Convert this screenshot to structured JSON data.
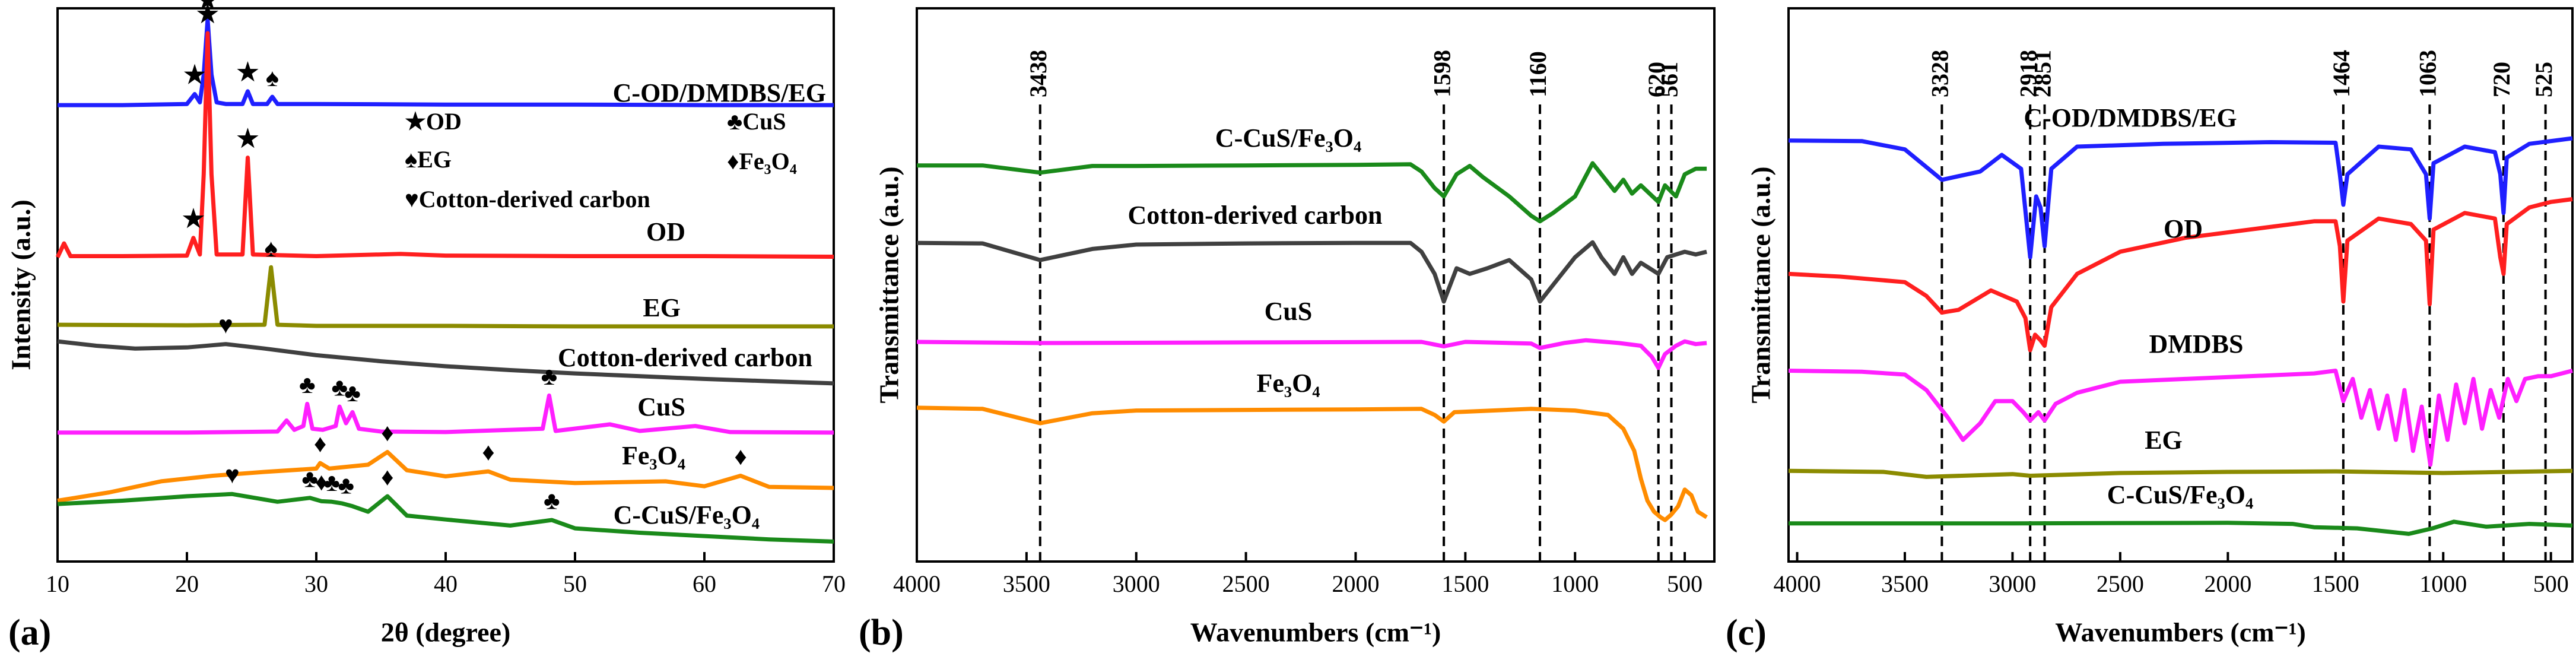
{
  "chart_data": [
    {
      "type": "line",
      "panel_label": "(a)",
      "x_label": "2θ (degree)",
      "y_label": "Intensity (a.u.)",
      "xlim": [
        10,
        70
      ],
      "xticks": [
        10,
        20,
        30,
        40,
        50,
        60,
        70
      ],
      "ylim": [
        0,
        100
      ],
      "legend_text": [
        "★OD",
        "♣CuS",
        "♠EG",
        "♦Fe₃O₄",
        "♥Cotton-derived carbon"
      ],
      "series": [
        {
          "name": "C-OD/DMDBS/EG",
          "color": "#1f1fff",
          "x": [
            10,
            15,
            20,
            20.6,
            21,
            21.3,
            21.6,
            21.9,
            22.3,
            23,
            24.3,
            24.7,
            25.1,
            26.2,
            26.6,
            27,
            30,
            40,
            50,
            60,
            70
          ],
          "values": [
            82.5,
            82.5,
            82.7,
            84.5,
            83,
            88,
            98,
            88,
            83,
            82.7,
            82.7,
            85,
            82.7,
            82.7,
            84,
            82.7,
            82.7,
            82.6,
            82.6,
            82.5,
            82.5
          ],
          "peaks": [
            {
              "label": "★",
              "x": 20.6
            },
            {
              "label": "★",
              "x": 21.6
            },
            {
              "label": "★",
              "x": 24.7
            },
            {
              "label": "♠",
              "x": 26.6
            }
          ]
        },
        {
          "name": "OD",
          "color": "#ff1f1f",
          "x": [
            10,
            10.5,
            11,
            15,
            20,
            20.5,
            21,
            21.3,
            21.6,
            21.9,
            22.3,
            24.3,
            24.7,
            25.1,
            30,
            36.5,
            40,
            50,
            60,
            70
          ],
          "values": [
            55,
            57.5,
            55.2,
            55.2,
            55.3,
            58.5,
            55.5,
            70,
            95.5,
            70,
            55.5,
            55.5,
            73,
            55.5,
            55.2,
            55.6,
            55.3,
            55.2,
            55.2,
            55.1
          ],
          "peaks": [
            {
              "label": "★",
              "x": 20.5
            },
            {
              "label": "★",
              "x": 21.6
            },
            {
              "label": "★",
              "x": 24.7
            }
          ]
        },
        {
          "name": "EG",
          "color": "#8b8b00",
          "x": [
            10,
            20,
            26,
            26.5,
            27,
            30,
            40,
            50,
            60,
            70
          ],
          "values": [
            42.8,
            42.7,
            42.8,
            53.2,
            42.8,
            42.6,
            42.6,
            42.5,
            42.5,
            42.5
          ],
          "peaks": [
            {
              "label": "♠",
              "x": 26.5
            }
          ]
        },
        {
          "name": "Cotton-derived carbon",
          "color": "#404040",
          "x": [
            10,
            13,
            16,
            20,
            23,
            26,
            30,
            35,
            40,
            45,
            50,
            55,
            60,
            65,
            70
          ],
          "values": [
            39.8,
            39,
            38.5,
            38.7,
            39.3,
            38.5,
            37.3,
            36.2,
            35.3,
            34.6,
            34,
            33.5,
            33,
            32.6,
            32.2
          ],
          "peaks": [
            {
              "label": "♥",
              "x": 23
            }
          ]
        },
        {
          "name": "CuS",
          "color": "#ff1fff",
          "x": [
            10,
            20,
            27,
            27.7,
            28.3,
            29,
            29.3,
            29.7,
            30.5,
            31.5,
            31.8,
            32.3,
            32.8,
            33.3,
            35,
            40,
            47.5,
            48,
            48.5,
            52.7,
            55,
            59.3,
            62,
            70
          ],
          "values": [
            23.3,
            23.3,
            23.5,
            25.5,
            23.8,
            24.5,
            28.5,
            24,
            23.8,
            24.5,
            28,
            25,
            27,
            24,
            23.5,
            23.4,
            24,
            30,
            23.6,
            24.8,
            23.6,
            24.5,
            23.4,
            23.3
          ],
          "peaks": [
            {
              "label": "♣",
              "x": 29.3
            },
            {
              "label": "♣",
              "x": 31.8
            },
            {
              "label": "♣",
              "x": 32.8
            },
            {
              "label": "♣",
              "x": 48
            }
          ]
        },
        {
          "name": "Fe₃O₄",
          "color": "#ff8c00",
          "x": [
            10,
            14,
            18,
            22,
            26,
            30,
            30.3,
            31,
            34,
            35.5,
            37,
            40,
            43.3,
            45,
            50,
            57,
            60,
            62.8,
            65,
            70
          ],
          "values": [
            11,
            12.5,
            14.5,
            15.5,
            16.2,
            16.8,
            17.8,
            16.8,
            17.5,
            19.8,
            16.5,
            15.4,
            16.3,
            14.8,
            14.2,
            14.5,
            13.6,
            15.5,
            13.5,
            13.3
          ],
          "peaks": [
            {
              "label": "♦",
              "x": 30.3
            },
            {
              "label": "♦",
              "x": 35.5
            },
            {
              "label": "♦",
              "x": 43.3
            },
            {
              "label": "♦",
              "x": 62.8
            }
          ]
        },
        {
          "name": "C-CuS/Fe₃O₄",
          "color": "#1a8a1a",
          "x": [
            10,
            15,
            20,
            23.5,
            27,
            29.5,
            30.4,
            31.2,
            32,
            32.8,
            34,
            35.5,
            37,
            40,
            45,
            48.2,
            50,
            55,
            60,
            65,
            70
          ],
          "values": [
            10.4,
            11,
            11.8,
            12.2,
            10.8,
            11.5,
            10.9,
            10.8,
            10.5,
            10,
            9,
            11.8,
            8.3,
            7.6,
            6.5,
            7.5,
            6,
            5.2,
            4.6,
            4,
            3.6
          ],
          "peaks": [
            {
              "label": "♥",
              "x": 23.5
            },
            {
              "label": "♣",
              "x": 29.5
            },
            {
              "label": "♦",
              "x": 30.4
            },
            {
              "label": "♣",
              "x": 31.2
            },
            {
              "label": "♣",
              "x": 32.3
            },
            {
              "label": "♦",
              "x": 35.5
            },
            {
              "label": "♣",
              "x": 48.2
            }
          ]
        }
      ]
    },
    {
      "type": "line",
      "panel_label": "(b)",
      "x_label": "Wavenumbers (cm⁻¹)",
      "y_label": "Transmittance (a.u.)",
      "xlim": [
        4000,
        365
      ],
      "xticks": [
        4000,
        3500,
        3000,
        2500,
        2000,
        1500,
        1000,
        500
      ],
      "ylim": [
        0,
        100
      ],
      "reference_lines": [
        3438,
        1598,
        1160,
        620,
        561
      ],
      "series": [
        {
          "name": "C-CuS/Fe₃O₄",
          "color": "#1a8a1a",
          "x": [
            4000,
            3700,
            3438,
            3200,
            3000,
            2500,
            2000,
            1750,
            1700,
            1640,
            1598,
            1540,
            1480,
            1420,
            1300,
            1200,
            1160,
            1100,
            1000,
            920,
            880,
            820,
            780,
            740,
            700,
            660,
            620,
            590,
            540,
            500,
            450,
            400
          ],
          "values": [
            71.6,
            71.6,
            70.3,
            71.5,
            71.5,
            71.6,
            71.7,
            71.8,
            70.5,
            67.5,
            66,
            70,
            71.5,
            69.5,
            66,
            62.5,
            61.5,
            63,
            66,
            72,
            70,
            67,
            69,
            66.5,
            68,
            66.5,
            65,
            68,
            66,
            70,
            71,
            71
          ]
        },
        {
          "name": "Cotton-derived carbon",
          "color": "#404040",
          "x": [
            4000,
            3700,
            3438,
            3200,
            3000,
            2500,
            2000,
            1750,
            1700,
            1640,
            1598,
            1540,
            1480,
            1400,
            1300,
            1200,
            1160,
            1100,
            1000,
            920,
            880,
            820,
            780,
            740,
            700,
            660,
            620,
            580,
            500,
            450,
            400
          ],
          "values": [
            57.6,
            57.5,
            54.5,
            56.5,
            57.3,
            57.5,
            57.6,
            57.6,
            56,
            52,
            47,
            53,
            52,
            53,
            54.5,
            51,
            47,
            50,
            55,
            57.7,
            55,
            52,
            55,
            52,
            54,
            53,
            52,
            55,
            56,
            55.5,
            56
          ]
        },
        {
          "name": "CuS",
          "color": "#ff1fff",
          "x": [
            4000,
            3438,
            2500,
            1700,
            1598,
            1500,
            1200,
            1160,
            1050,
            950,
            800,
            700,
            650,
            620,
            590,
            540,
            500,
            450,
            400
          ],
          "values": [
            39.7,
            39.5,
            39.6,
            39.7,
            38.9,
            39.7,
            39.4,
            38.6,
            39.5,
            40,
            39.5,
            39,
            37,
            35,
            37.5,
            39,
            39.8,
            39.3,
            39.5
          ]
        },
        {
          "name": "Fe₃O₄",
          "color": "#ff8c00",
          "x": [
            4000,
            3700,
            3438,
            3200,
            3000,
            2500,
            2000,
            1700,
            1640,
            1598,
            1550,
            1200,
            1000,
            850,
            780,
            730,
            700,
            670,
            640,
            610,
            590,
            561,
            530,
            500,
            470,
            440,
            400
          ],
          "values": [
            27.8,
            27.6,
            25,
            26.8,
            27.3,
            27.4,
            27.5,
            27.6,
            26.5,
            25.3,
            27,
            27.6,
            27.3,
            26.5,
            24,
            20,
            15,
            11,
            9,
            8,
            7.5,
            8.5,
            10,
            13,
            12,
            9,
            8
          ]
        }
      ]
    },
    {
      "type": "line",
      "panel_label": "(c)",
      "x_label": "Wavenumbers (cm⁻¹)",
      "y_label": "Transmittance (a.u.)",
      "xlim": [
        4040,
        400
      ],
      "xticks": [
        4000,
        3500,
        3000,
        2500,
        2000,
        1500,
        1000,
        500
      ],
      "ylim": [
        0,
        100
      ],
      "reference_lines": [
        3328,
        2918,
        2851,
        1464,
        1063,
        720,
        525
      ],
      "series": [
        {
          "name": "C-OD/DMDBS/EG",
          "color": "#1f1fff",
          "x": [
            4040,
            3700,
            3500,
            3328,
            3150,
            3050,
            2960,
            2918,
            2890,
            2870,
            2851,
            2820,
            2700,
            2300,
            1800,
            1500,
            1480,
            1464,
            1445,
            1300,
            1150,
            1080,
            1063,
            1045,
            900,
            760,
            735,
            720,
            705,
            600,
            400
          ],
          "values": [
            76.1,
            76,
            74.5,
            69,
            70.5,
            73.5,
            71,
            55,
            66,
            64,
            57,
            71,
            75,
            75.5,
            75.8,
            75.7,
            70,
            64.5,
            70,
            75,
            74.5,
            70,
            62,
            72,
            75,
            74,
            70,
            63,
            73,
            75.5,
            76.5
          ]
        },
        {
          "name": "OD",
          "color": "#ff1f1f",
          "x": [
            4040,
            3800,
            3500,
            3400,
            3328,
            3250,
            3100,
            2980,
            2940,
            2918,
            2895,
            2870,
            2851,
            2820,
            2700,
            2500,
            2200,
            1900,
            1600,
            1500,
            1480,
            1464,
            1445,
            1300,
            1150,
            1080,
            1063,
            1045,
            900,
            760,
            735,
            720,
            705,
            600,
            500,
            400
          ],
          "values": [
            52,
            51.5,
            50.5,
            48,
            45,
            45.5,
            49,
            47,
            44,
            38.2,
            41,
            40,
            39,
            46,
            52,
            56,
            58.5,
            60,
            61.5,
            61.5,
            57,
            47,
            58,
            62,
            61,
            58,
            46.5,
            60,
            63,
            62,
            55,
            52,
            61,
            64,
            65,
            65.5
          ]
        },
        {
          "name": "DMDBS",
          "color": "#ff1fff",
          "x": [
            4040,
            3700,
            3500,
            3400,
            3300,
            3230,
            3150,
            3080,
            3000,
            2950,
            2918,
            2880,
            2851,
            2800,
            2700,
            2500,
            2200,
            1900,
            1600,
            1500,
            1464,
            1420,
            1380,
            1340,
            1300,
            1260,
            1220,
            1180,
            1140,
            1100,
            1060,
            1020,
            980,
            940,
            900,
            860,
            820,
            780,
            740,
            700,
            660,
            620,
            560,
            500,
            400
          ],
          "values": [
            34.5,
            34.3,
            33.8,
            31,
            26,
            22,
            25,
            29,
            29,
            27,
            25.5,
            27,
            25.5,
            28.5,
            30.5,
            32.5,
            33,
            33.5,
            34,
            34.5,
            29,
            33,
            26,
            31,
            24,
            30,
            22,
            31,
            20,
            28,
            17.5,
            30,
            22,
            32,
            25,
            33,
            24,
            31,
            26,
            33,
            29,
            33,
            33.5,
            33.5,
            34.5
          ]
        },
        {
          "name": "EG",
          "color": "#8b8b00",
          "x": [
            4040,
            3600,
            3400,
            3000,
            2918,
            2500,
            2000,
            1500,
            1000,
            400
          ],
          "values": [
            16.4,
            16.2,
            15.3,
            15.8,
            15.5,
            16,
            16.2,
            16.3,
            16,
            16.4
          ]
        },
        {
          "name": "C-CuS/Fe₃O₄",
          "color": "#1a8a1a",
          "x": [
            4040,
            3000,
            2000,
            1700,
            1600,
            1400,
            1160,
            1050,
            950,
            800,
            600,
            400
          ],
          "values": [
            6.9,
            6.9,
            7,
            6.8,
            6.2,
            6,
            5,
            6,
            7.2,
            6.3,
            6.8,
            6.5
          ]
        }
      ]
    }
  ]
}
